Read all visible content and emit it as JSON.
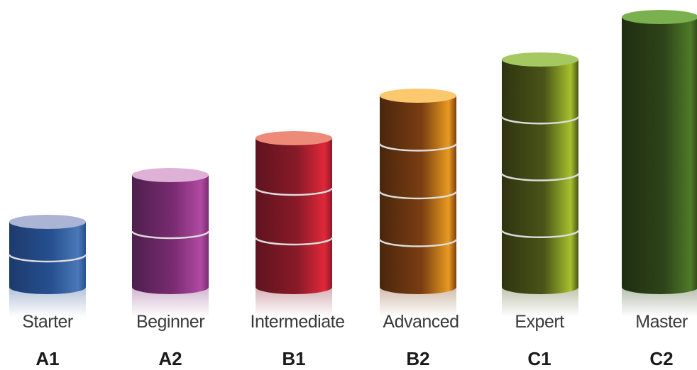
{
  "levels": [
    {
      "name": "Starter",
      "code": "A1",
      "segments": 2,
      "colors": {
        "dark": "#1d3a6e",
        "mid": "#26508f",
        "light": "#4a78b8",
        "top": "#aab4d4"
      }
    },
    {
      "name": "Beginner",
      "code": "A2",
      "segments": 2,
      "colors": {
        "dark": "#4e1f4d",
        "mid": "#7a2c72",
        "light": "#b04aa2",
        "top": "#ddb2d6"
      }
    },
    {
      "name": "Intermediate",
      "code": "B1",
      "segments": 3,
      "colors": {
        "dark": "#5e1420",
        "mid": "#8a1a28",
        "light": "#e0283a",
        "top": "#ee8a78"
      }
    },
    {
      "name": "Advanced",
      "code": "B2",
      "segments": 4,
      "colors": {
        "dark": "#4a260c",
        "mid": "#7a3e12",
        "light": "#e89a20",
        "top": "#fbc86e"
      }
    },
    {
      "name": "Expert",
      "code": "C1",
      "segments": 4,
      "colors": {
        "dark": "#2f3410",
        "mid": "#4a5418",
        "light": "#a6c02c",
        "top": "#a6c860"
      }
    },
    {
      "name": "Master",
      "code": "C2",
      "segments": 1,
      "colors": {
        "dark": "#1f2e12",
        "mid": "#2e4418",
        "light": "#4e7a28",
        "top": "#7ab04e"
      }
    }
  ]
}
